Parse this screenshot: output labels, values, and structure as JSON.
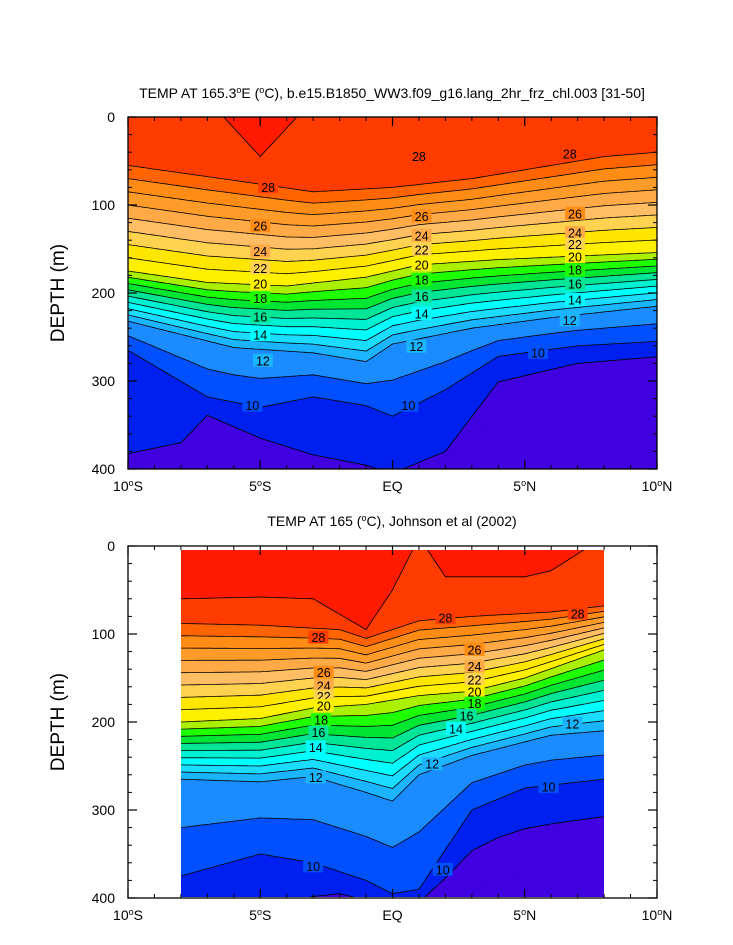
{
  "chart_data": [
    {
      "type": "contour",
      "title_main": "TEMP AT 165.3",
      "title_unit_left": "E (",
      "title_rest": "C), b.e15.B1850_WW3.f09_g16.lang_2hr_frz_chl.003 [31-50]",
      "degree_symbol": "o",
      "ylabel": "DEPTH (m)",
      "ylim": [
        0,
        400
      ],
      "xlim": [
        -10,
        10
      ],
      "x_ticks": [
        {
          "value": -10,
          "num": "10",
          "hemi": "S"
        },
        {
          "value": -5,
          "num": "5",
          "hemi": "S"
        },
        {
          "value": 0,
          "num": "EQ",
          "hemi": ""
        },
        {
          "value": 5,
          "num": "5",
          "hemi": "N"
        },
        {
          "value": 10,
          "num": "10",
          "hemi": "N"
        }
      ],
      "y_ticks": [
        0,
        100,
        200,
        300,
        400
      ],
      "contour_interval": 1,
      "labeled_contours": [
        {
          "value": 28,
          "x": 1.0,
          "depth": 45
        },
        {
          "value": 28,
          "x": 6.7,
          "depth": 42
        },
        {
          "value": 28,
          "x": -4.7,
          "depth": 80
        },
        {
          "value": 26,
          "x": -5.0,
          "depth": 124
        },
        {
          "value": 26,
          "x": 1.1,
          "depth": 113
        },
        {
          "value": 26,
          "x": 6.9,
          "depth": 110
        },
        {
          "value": 24,
          "x": -5.0,
          "depth": 153
        },
        {
          "value": 24,
          "x": 1.1,
          "depth": 135
        },
        {
          "value": 24,
          "x": 6.9,
          "depth": 132
        },
        {
          "value": 22,
          "x": -5.0,
          "depth": 172
        },
        {
          "value": 22,
          "x": 1.1,
          "depth": 151
        },
        {
          "value": 22,
          "x": 6.9,
          "depth": 145
        },
        {
          "value": 20,
          "x": -5.0,
          "depth": 190
        },
        {
          "value": 20,
          "x": 1.1,
          "depth": 168
        },
        {
          "value": 20,
          "x": 6.9,
          "depth": 159
        },
        {
          "value": 18,
          "x": -5.0,
          "depth": 206
        },
        {
          "value": 18,
          "x": 1.1,
          "depth": 185
        },
        {
          "value": 18,
          "x": 6.9,
          "depth": 174
        },
        {
          "value": 16,
          "x": -5.0,
          "depth": 227
        },
        {
          "value": 16,
          "x": 1.1,
          "depth": 204
        },
        {
          "value": 16,
          "x": 6.9,
          "depth": 190
        },
        {
          "value": 14,
          "x": -5.0,
          "depth": 248
        },
        {
          "value": 14,
          "x": 1.1,
          "depth": 224
        },
        {
          "value": 14,
          "x": 6.9,
          "depth": 208
        },
        {
          "value": 12,
          "x": -4.9,
          "depth": 277
        },
        {
          "value": 12,
          "x": 0.9,
          "depth": 261
        },
        {
          "value": 12,
          "x": 6.7,
          "depth": 231
        },
        {
          "value": 10,
          "x": -5.3,
          "depth": 328
        },
        {
          "value": 10,
          "x": 0.6,
          "depth": 328
        },
        {
          "value": 10,
          "x": 5.5,
          "depth": 268
        }
      ]
    },
    {
      "type": "contour",
      "title_main": "TEMP AT 165 (",
      "title_rest": "C), Johnson et al (2002)",
      "degree_symbol": "o",
      "ylabel": "DEPTH (m)",
      "ylim": [
        0,
        400
      ],
      "xlim": [
        -10,
        10
      ],
      "data_xlim": [
        -8,
        8
      ],
      "x_ticks": [
        {
          "value": -10,
          "num": "10",
          "hemi": "S"
        },
        {
          "value": -5,
          "num": "5",
          "hemi": "S"
        },
        {
          "value": 0,
          "num": "EQ",
          "hemi": ""
        },
        {
          "value": 5,
          "num": "5",
          "hemi": "N"
        },
        {
          "value": 10,
          "num": "10",
          "hemi": "N"
        }
      ],
      "y_ticks": [
        0,
        100,
        200,
        300,
        400
      ],
      "contour_interval": 1,
      "labeled_contours": [
        {
          "value": 28,
          "x": 2.0,
          "depth": 82
        },
        {
          "value": 28,
          "x": 7.0,
          "depth": 77
        },
        {
          "value": 28,
          "x": -2.8,
          "depth": 104
        },
        {
          "value": 26,
          "x": -2.6,
          "depth": 144
        },
        {
          "value": 26,
          "x": 3.1,
          "depth": 118
        },
        {
          "value": 24,
          "x": -2.6,
          "depth": 159
        },
        {
          "value": 24,
          "x": 3.1,
          "depth": 137
        },
        {
          "value": 22,
          "x": -2.6,
          "depth": 171
        },
        {
          "value": 22,
          "x": 3.1,
          "depth": 152
        },
        {
          "value": 20,
          "x": -2.6,
          "depth": 182
        },
        {
          "value": 20,
          "x": 3.1,
          "depth": 166
        },
        {
          "value": 18,
          "x": -2.7,
          "depth": 198
        },
        {
          "value": 18,
          "x": 3.1,
          "depth": 179
        },
        {
          "value": 16,
          "x": -2.8,
          "depth": 212
        },
        {
          "value": 16,
          "x": 2.8,
          "depth": 193
        },
        {
          "value": 14,
          "x": -2.9,
          "depth": 229
        },
        {
          "value": 14,
          "x": 2.4,
          "depth": 208
        },
        {
          "value": 12,
          "x": -2.9,
          "depth": 263
        },
        {
          "value": 12,
          "x": 1.5,
          "depth": 248
        },
        {
          "value": 12,
          "x": 6.8,
          "depth": 202
        },
        {
          "value": 10,
          "x": -3.0,
          "depth": 364
        },
        {
          "value": 10,
          "x": 1.9,
          "depth": 368
        },
        {
          "value": 10,
          "x": 5.9,
          "depth": 274
        }
      ]
    }
  ]
}
